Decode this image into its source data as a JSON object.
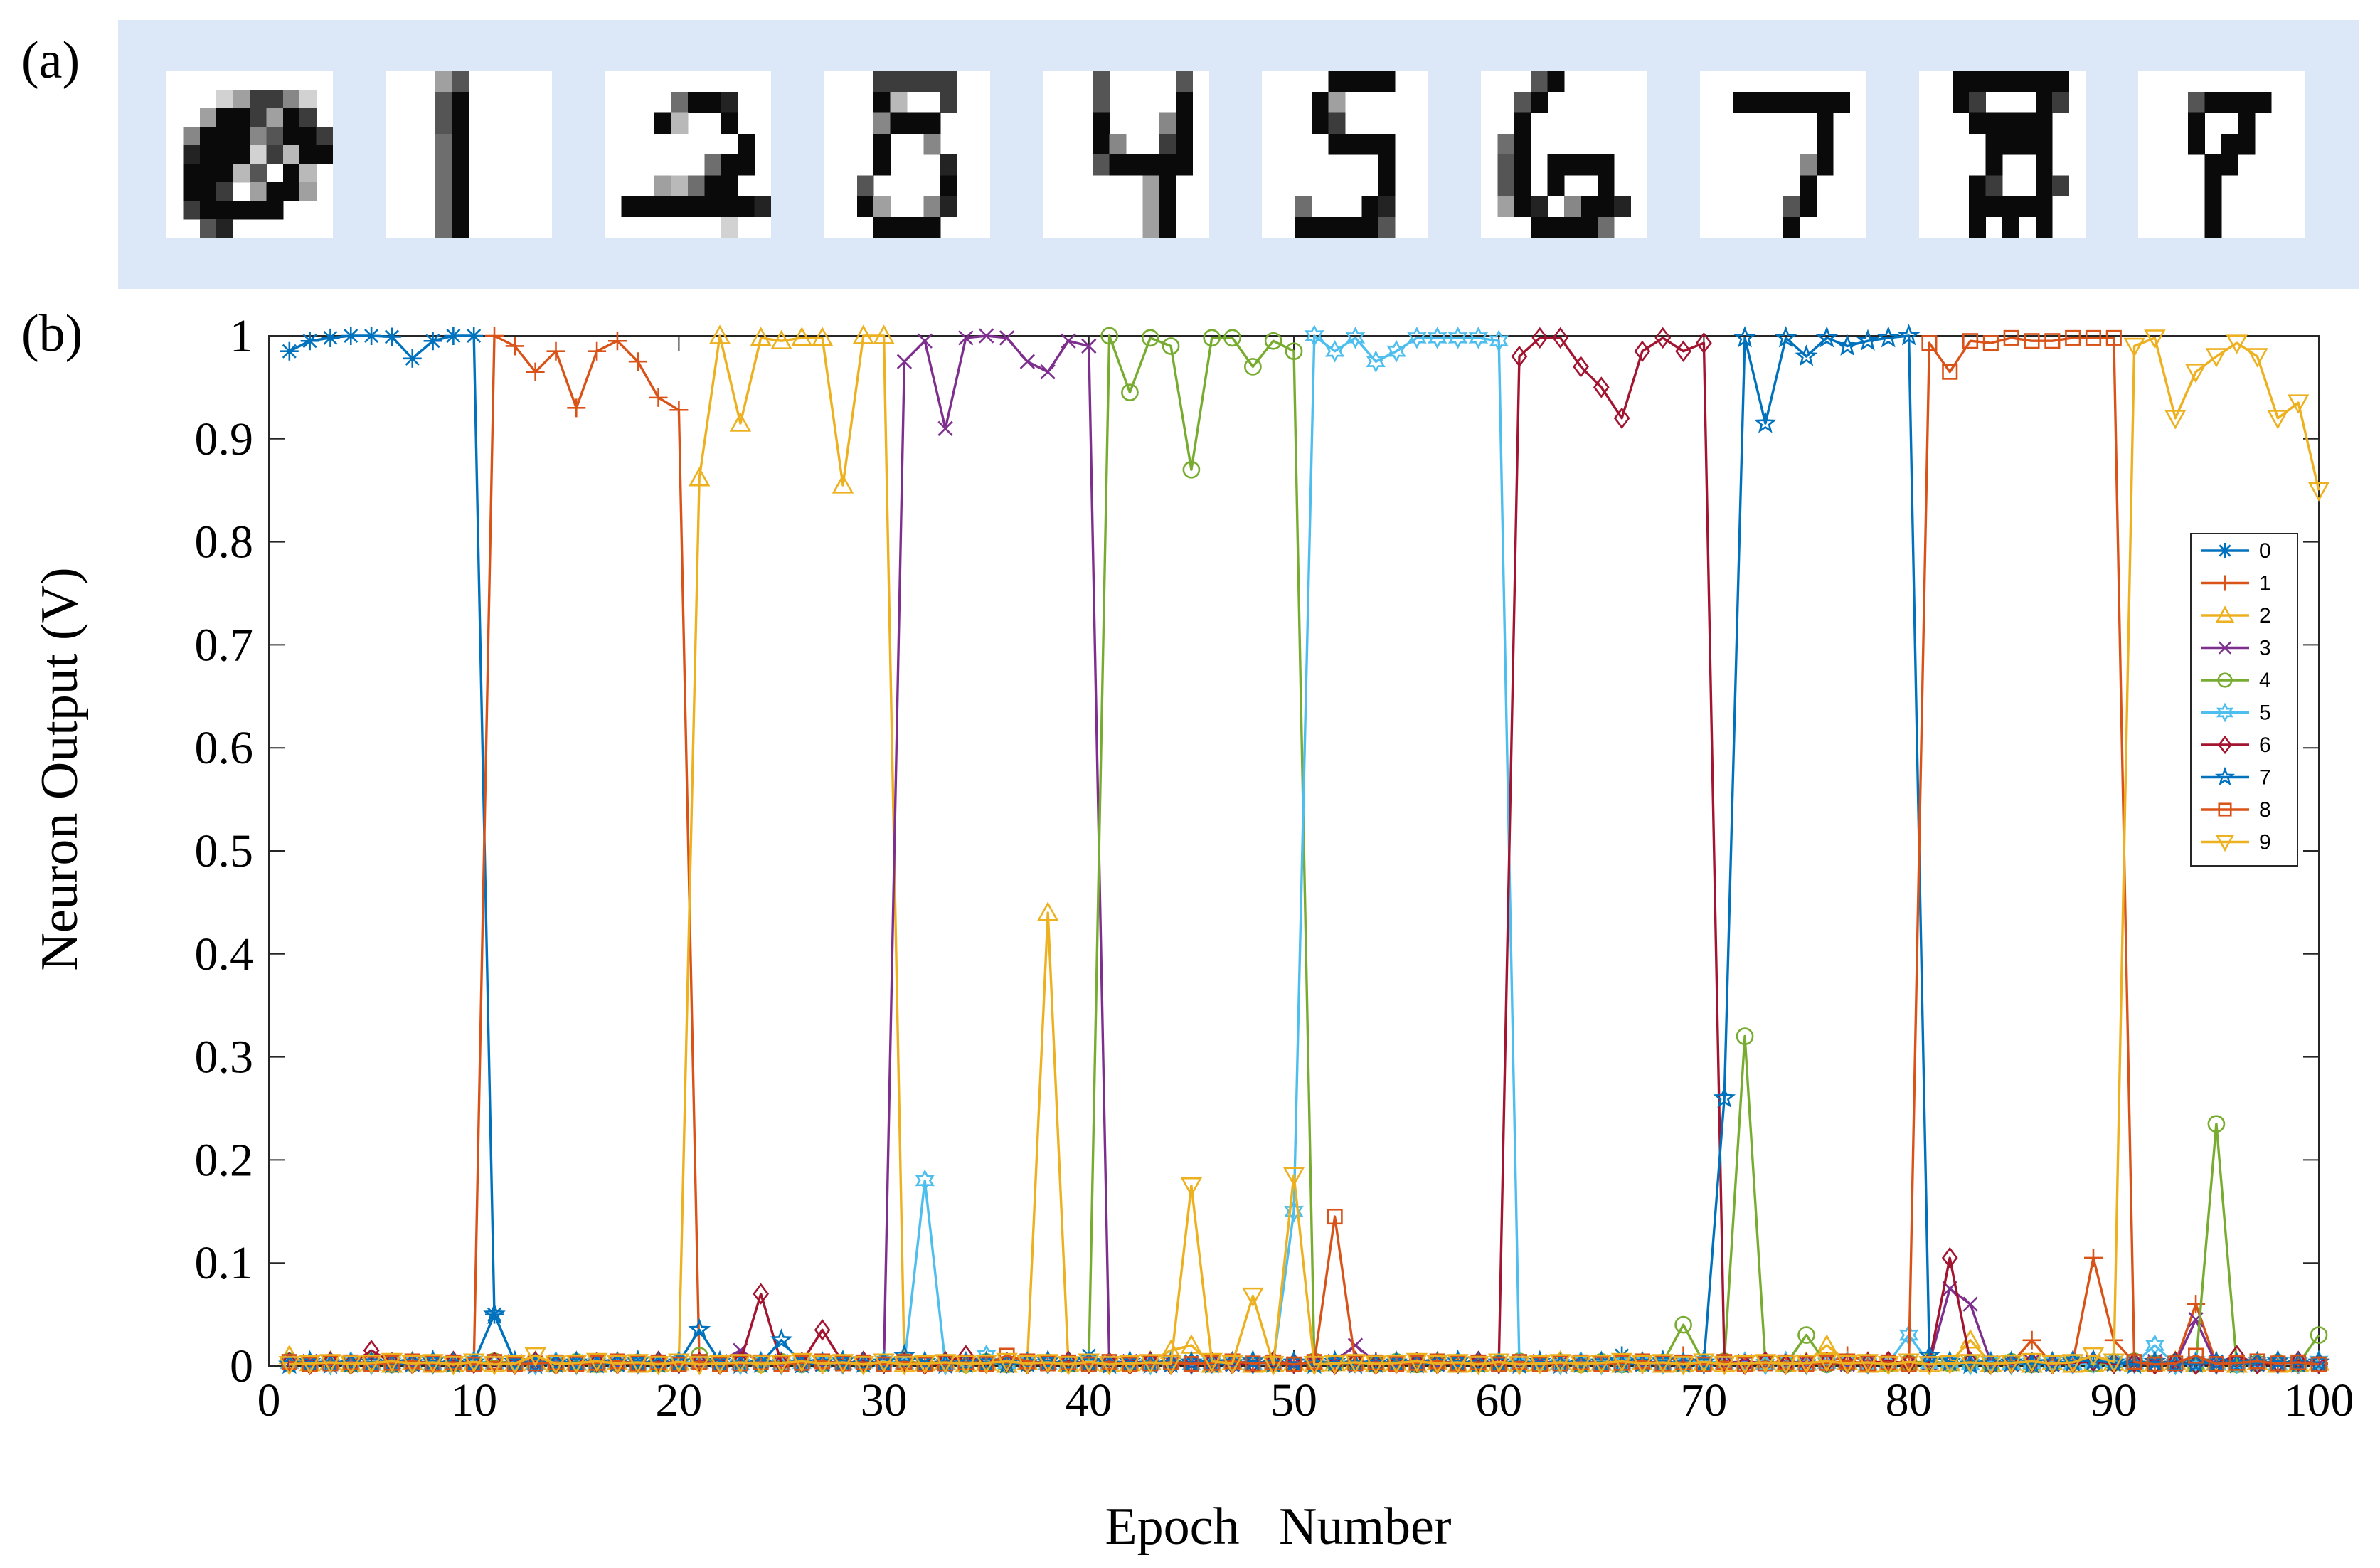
{
  "panel_labels": {
    "a": "(a)",
    "b": "(b)"
  },
  "digits": [
    {
      "label": "0",
      "grid": [
        "..........",
        "...137741.",
        "..3997397.",
        ".4999469976",
        ".899917299.",
        ".99926.92..",
        ".997.3993..",
        ".799999....",
        "..68..."
      ]
    },
    {
      "label": "1",
      "grid": [
        "...36.....",
        "...69.....",
        "...69.....",
        "...59.....",
        "...59.....",
        "...59.....",
        "...59.....",
        "...59....."
      ]
    },
    {
      "label": "2",
      "grid": [
        "..........",
        "....5998..",
        "...92..9..",
        "........9.",
        "......599.",
        "...32599..",
        ".9999999987",
        ".......1.."
      ]
    },
    {
      "label": "3",
      "grid": [
        "...77777..",
        "...92..7..",
        "...4999...",
        "...9..4...",
        "...9...8..",
        "..6....9..",
        "..93..48..",
        "...9999..."
      ]
    },
    {
      "label": "4",
      "grid": [
        "...6....6.",
        "...6....9.",
        "...9...49.",
        "...94..79.",
        "...699999.",
        "......39..",
        "......39..",
        "......39.."
      ]
    },
    {
      "label": "5",
      "grid": [
        "....9999..",
        "...93.....",
        "...97.....",
        "....9999..",
        ".......9..",
        ".......9..",
        "..5...98..",
        "..999996.."
      ]
    },
    {
      "label": "6",
      "grid": [
        "...69.....",
        "..69......",
        "..9.......",
        ".59.......",
        ".69.9999..",
        ".69.9..9..",
        ".398.4998.",
        "...99995.."
      ]
    },
    {
      "label": "7",
      "grid": [
        "..........",
        "..9999999.",
        ".......9..",
        ".......9..",
        "......49..",
        "......9...",
        ".....69...",
        ".....9...."
      ]
    },
    {
      "label": "8",
      "grid": [
        "..9999999.",
        "..97...97.",
        "...99999..",
        "....9999..",
        "....9..9..",
        "...97..97.",
        "...99999..",
        "...9.9.9.."
      ]
    },
    {
      "label": "9",
      "grid": [
        "..........",
        "...69999..",
        "...9..9...",
        "...9.99...",
        "....99....",
        "....9.....",
        "....9.....",
        "....9....."
      ]
    }
  ],
  "chart_data": {
    "type": "line",
    "title": "",
    "xlabel": "Epoch   Number",
    "ylabel": "Neuron Output (V)",
    "xlim": [
      0,
      100
    ],
    "ylim": [
      0,
      1
    ],
    "xticks": [
      0,
      10,
      20,
      30,
      40,
      50,
      60,
      70,
      80,
      90,
      100
    ],
    "yticks": [
      0,
      0.1,
      0.2,
      0.3,
      0.4,
      0.5,
      0.6,
      0.7,
      0.8,
      0.9,
      1
    ],
    "ytick_labels": [
      "0",
      "0.1",
      "0.2",
      "0.3",
      "0.4",
      "0.5",
      "0.6",
      "0.7",
      "0.8",
      "0.9",
      "1"
    ],
    "grid": false,
    "legend_position": "right",
    "series": [
      {
        "name": "0",
        "color": "#0072bd",
        "marker": "asterisk",
        "high": [
          0.985,
          0.995,
          0.998,
          1.0,
          1.0,
          0.999,
          0.978,
          0.995,
          1.0,
          1.0,
          0.99
        ],
        "extra": {
          "11": 0.05,
          "21": 0.005,
          "25": 0.005,
          "40": 0.01,
          "66": 0.01
        }
      },
      {
        "name": "1",
        "color": "#d95319",
        "marker": "plus",
        "high": [
          1.0,
          0.99,
          0.965,
          0.985,
          0.93,
          0.985,
          0.995,
          0.975,
          0.94,
          0.928
        ],
        "extra": {
          "31": 0.005,
          "69": 0.01,
          "77": 0.01,
          "78": 0.005,
          "86": 0.025,
          "89": 0.105,
          "90": 0.025,
          "94": 0.06
        }
      },
      {
        "name": "2",
        "color": "#edb120",
        "marker": "triangle-up",
        "high": [
          0.862,
          1.0,
          0.915,
          0.998,
          0.995,
          0.998,
          0.998,
          0.855,
          1.0,
          1.0
        ],
        "extra": {
          "1": 0.01,
          "26": 0.015,
          "38": 0.44,
          "44": 0.015,
          "45": 0.02,
          "76": 0.02,
          "83": 0.025
        }
      },
      {
        "name": "3",
        "color": "#7e2f8e",
        "marker": "x",
        "high": [
          0.975,
          0.995,
          0.91,
          0.998,
          1.0,
          0.998,
          0.975,
          0.965,
          0.995,
          0.99
        ],
        "extra": {
          "23": 0.015,
          "53": 0.02,
          "82": 0.075,
          "83": 0.06,
          "94": 0.045
        }
      },
      {
        "name": "4",
        "color": "#77ac30",
        "marker": "circle",
        "high": [
          1.0,
          0.945,
          0.998,
          0.99,
          0.87,
          0.998,
          0.998,
          0.97,
          0.995,
          0.985
        ],
        "extra": {
          "21": 0.01,
          "69": 0.04,
          "72": 0.32,
          "75": 0.03,
          "95": 0.235,
          "100": 0.03
        }
      },
      {
        "name": "5",
        "color": "#4dbeee",
        "marker": "hexagram",
        "high": [
          1.0,
          0.985,
          0.998,
          0.975,
          0.985,
          0.998,
          0.998,
          0.998,
          0.998,
          0.995
        ],
        "extra": {
          "32": 0.18,
          "35": 0.01,
          "50": 0.15,
          "80": 0.03,
          "92": 0.02
        }
      },
      {
        "name": "6",
        "color": "#a2142f",
        "marker": "diamond",
        "high": [
          0.98,
          0.998,
          0.998,
          0.97,
          0.95,
          0.92,
          0.985,
          0.998,
          0.985,
          0.993
        ],
        "extra": {
          "5": 0.015,
          "24": 0.07,
          "27": 0.035,
          "34": 0.01,
          "82": 0.105,
          "96": 0.01
        }
      },
      {
        "name": "7",
        "color": "#0072bd",
        "marker": "pentagram",
        "high": [
          0.26,
          0.998,
          0.915,
          0.998,
          0.98,
          0.998,
          0.99,
          0.995,
          0.998,
          1.0
        ],
        "extra": {
          "11": 0.05,
          "21": 0.035,
          "25": 0.025,
          "31": 0.01,
          "81": 0.01,
          "89": 0.005
        }
      },
      {
        "name": "8",
        "color": "#d95319",
        "marker": "square",
        "high": [
          0.993,
          0.965,
          0.995,
          0.993,
          0.998,
          0.995,
          0.995,
          0.998,
          0.998,
          0.998
        ],
        "extra": {
          "36": 0.01,
          "52": 0.145,
          "94": 0.01
        }
      },
      {
        "name": "9",
        "color": "#edb120",
        "marker": "triangle-down",
        "high": [
          0.99,
          0.998,
          0.92,
          0.965,
          0.98,
          0.993,
          0.98,
          0.92,
          0.935,
          0.85
        ],
        "extra": {
          "13": 0.01,
          "45": 0.175,
          "48": 0.068,
          "50": 0.185,
          "89": 0.01
        }
      }
    ]
  }
}
